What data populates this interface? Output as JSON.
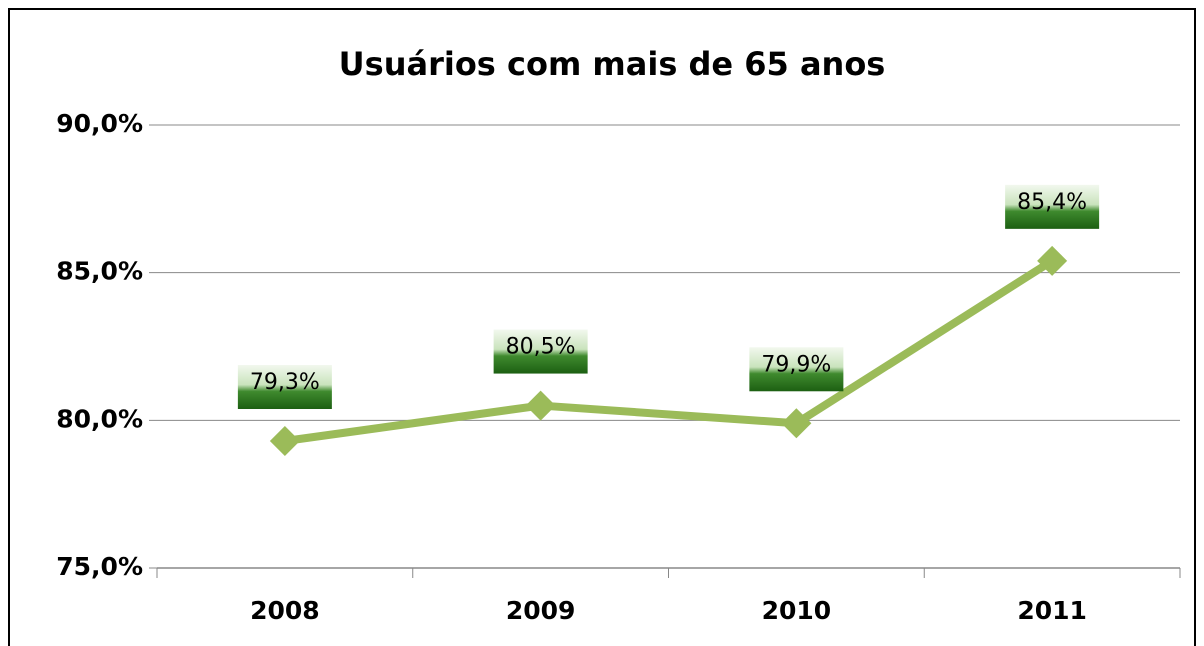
{
  "chart_data": {
    "type": "line",
    "title": "Usuários com mais de 65 anos",
    "categories": [
      "2008",
      "2009",
      "2010",
      "2011"
    ],
    "series": [
      {
        "color": "#9bbb59",
        "values": [
          79.3,
          80.5,
          79.9,
          85.4
        ],
        "value_labels": [
          "79,3%",
          "80,5%",
          "79,9%",
          "85,4%"
        ]
      }
    ],
    "ylim": [
      75,
      90
    ],
    "yticks": [
      {
        "value": 75,
        "label": "75,0%"
      },
      {
        "value": 80,
        "label": "80,0%"
      },
      {
        "value": 85,
        "label": "85,0%"
      },
      {
        "value": 90,
        "label": "90,0%"
      }
    ],
    "grid": true
  }
}
